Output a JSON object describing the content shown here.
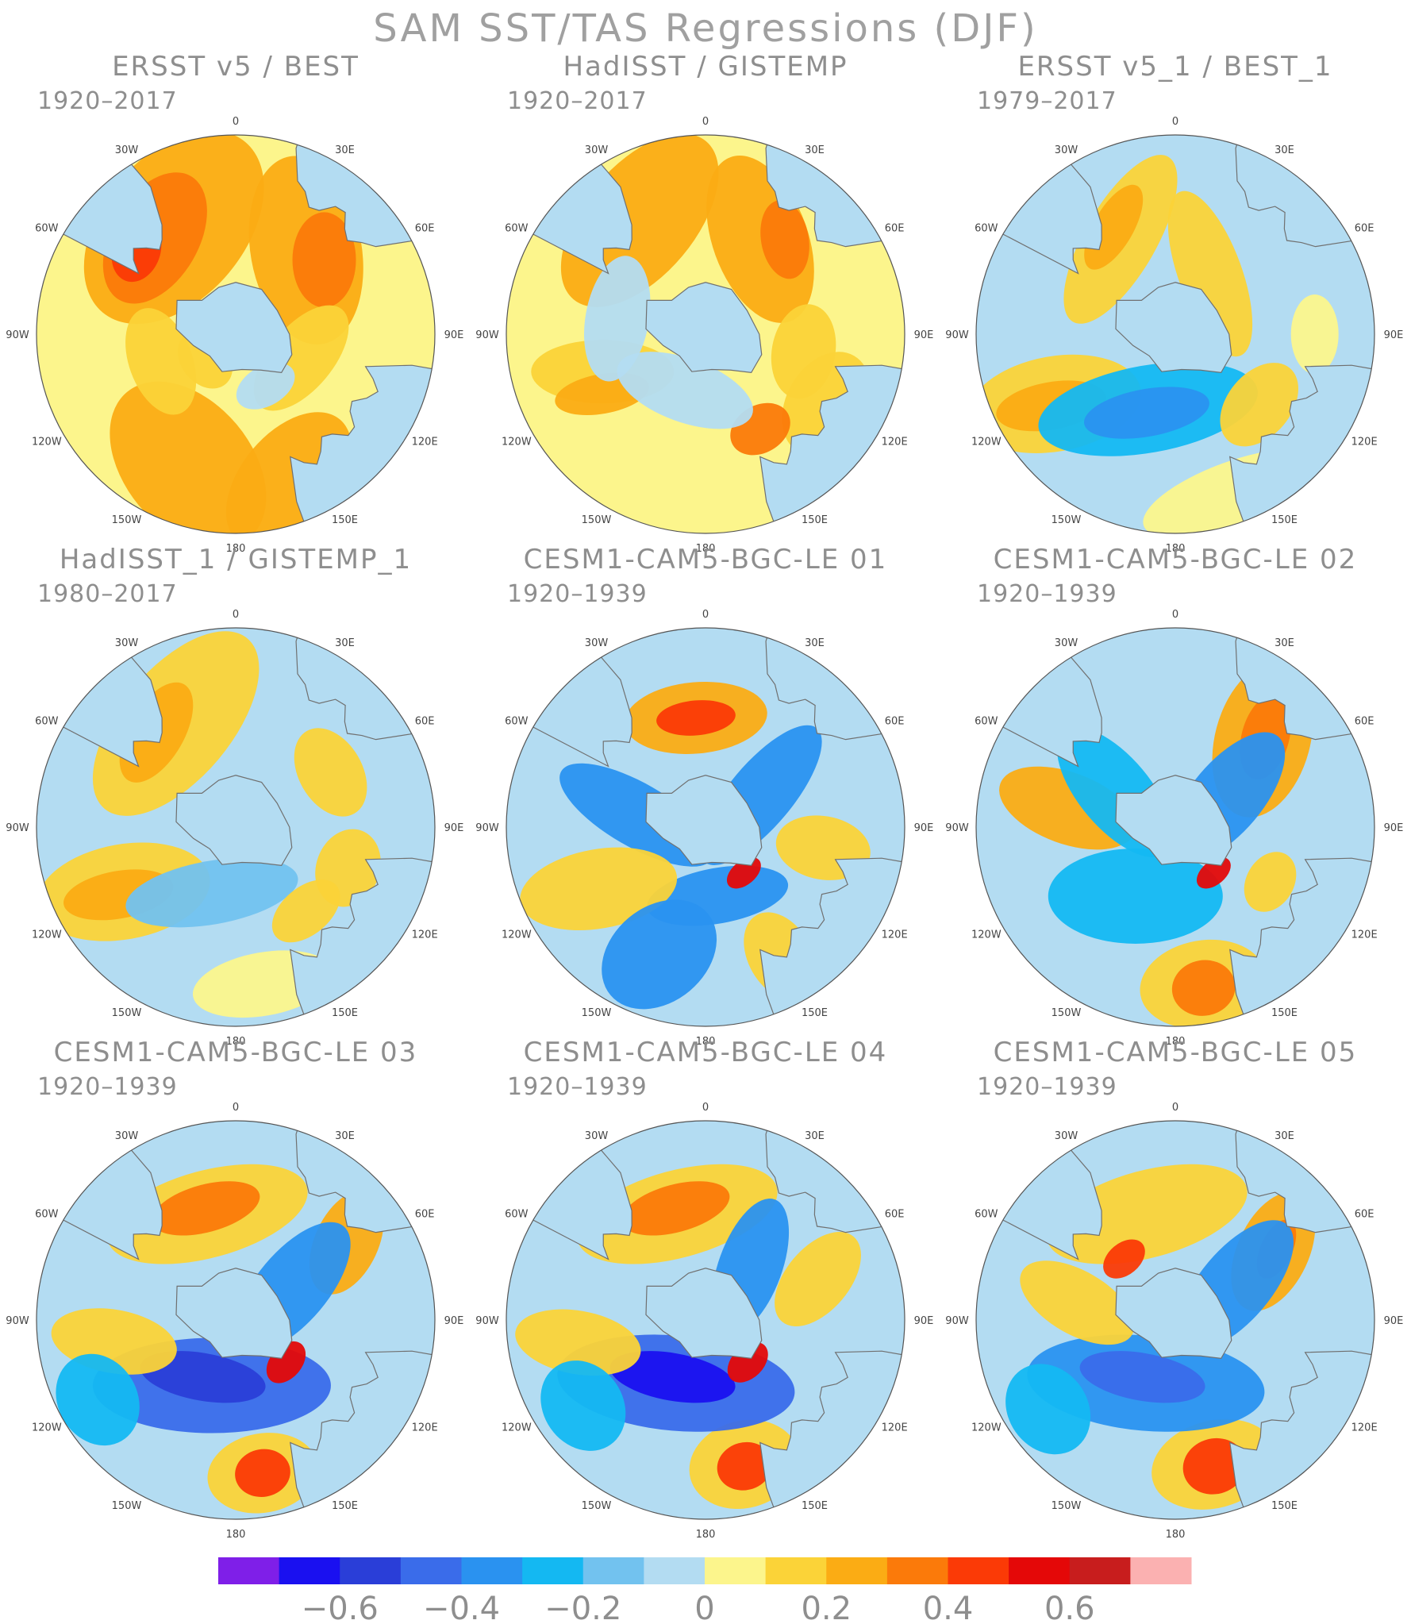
{
  "title": "SAM SST/TAS Regressions (DJF)",
  "longitude_labels": [
    "0",
    "30E",
    "60E",
    "90E",
    "120E",
    "150E",
    "180",
    "150W",
    "120W",
    "90W",
    "60W",
    "30W"
  ],
  "panels": [
    {
      "title": "ERSST v5 / BEST",
      "period": "1920–2017",
      "pattern": "obs1"
    },
    {
      "title": "HadISST / GISTEMP",
      "period": "1920–2017",
      "pattern": "obs2"
    },
    {
      "title": "ERSST v5_1 / BEST_1",
      "period": "1979–2017",
      "pattern": "obs3"
    },
    {
      "title": "HadISST_1 / GISTEMP_1",
      "period": "1980–2017",
      "pattern": "obs4"
    },
    {
      "title": "CESM1-CAM5-BGC-LE 01",
      "period": "1920–1939",
      "pattern": "m01"
    },
    {
      "title": "CESM1-CAM5-BGC-LE 02",
      "period": "1920–1939",
      "pattern": "m02"
    },
    {
      "title": "CESM1-CAM5-BGC-LE 03",
      "period": "1920–1939",
      "pattern": "m03"
    },
    {
      "title": "CESM1-CAM5-BGC-LE 04",
      "period": "1920–1939",
      "pattern": "m04"
    },
    {
      "title": "CESM1-CAM5-BGC-LE 05",
      "period": "1920–1939",
      "pattern": "m05"
    }
  ],
  "colorbar": {
    "colors": [
      "#7f1fe8",
      "#1a10f0",
      "#2a3ed8",
      "#3a6cea",
      "#2a92f0",
      "#14b8f2",
      "#72c2ef",
      "#b3dcf2",
      "#fcf58c",
      "#fbd338",
      "#fbac14",
      "#fb7a0a",
      "#fb3a06",
      "#e40808",
      "#c81d1d",
      "#fbb1b1"
    ],
    "ticks": [
      "−0.6",
      "−0.4",
      "−0.2",
      "0",
      "0.2",
      "0.4",
      "0.6"
    ],
    "tick_values": [
      -0.6,
      -0.4,
      -0.2,
      0,
      0.2,
      0.4,
      0.6
    ]
  },
  "colors": {
    "ocean_zero": "#fcf58c",
    "land": "#b3dcf2",
    "coast": "#707070"
  }
}
